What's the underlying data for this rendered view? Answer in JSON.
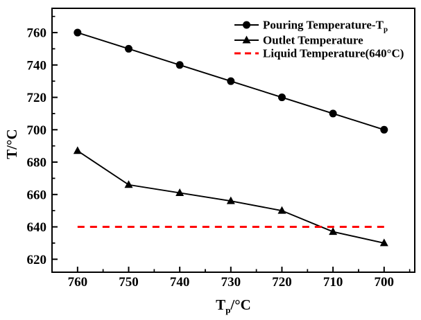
{
  "figure": {
    "background": "#ffffff",
    "frame_color": "#000000"
  },
  "chart_data": {
    "type": "line",
    "title": "",
    "xlabel": {
      "main": "T",
      "sub": "p",
      "rest": "/°C",
      "text": "Tp/°C"
    },
    "ylabel": "T/°C",
    "x": [
      760,
      750,
      740,
      730,
      720,
      710,
      700
    ],
    "x_axis": {
      "ticks": [
        760,
        750,
        740,
        730,
        720,
        710,
        700
      ],
      "range": [
        765,
        694
      ],
      "reversed": true,
      "minor_interval": 5
    },
    "y_axis": {
      "ticks": [
        620,
        640,
        660,
        680,
        700,
        720,
        740,
        760
      ],
      "range": [
        612,
        775
      ],
      "minor_interval": 10
    },
    "series": [
      {
        "name": "Pouring Temperature-Tp",
        "legend_text": "Pouring Temperature-T",
        "legend_sub": "p",
        "marker": "circle",
        "color": "#000000",
        "linestyle": "solid",
        "x": [
          760,
          750,
          740,
          730,
          720,
          710,
          700
        ],
        "y": [
          760,
          750,
          740,
          730,
          720,
          710,
          700
        ]
      },
      {
        "name": "Outlet Temperature",
        "legend_text": "Outlet Temperature",
        "legend_sub": "",
        "marker": "triangle",
        "color": "#000000",
        "linestyle": "solid",
        "x": [
          760,
          750,
          740,
          730,
          720,
          710,
          700
        ],
        "y": [
          687,
          666,
          661,
          656,
          650,
          637,
          630
        ]
      },
      {
        "name": "Liquid Temperature(640°C)",
        "legend_text": "Liquid Temperature(640°C)",
        "legend_sub": "",
        "marker": "none",
        "color": "#ff0000",
        "linestyle": "dashed",
        "constant_y": 640,
        "x": [
          760,
          700
        ],
        "y": [
          640,
          640
        ]
      }
    ],
    "legend": {
      "position": "top-right",
      "border": false
    }
  }
}
